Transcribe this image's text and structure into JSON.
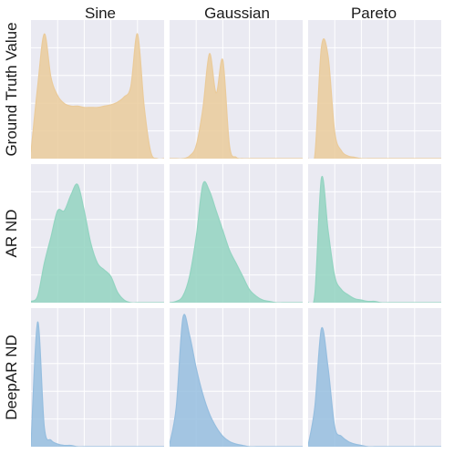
{
  "chart_data": {
    "type": "area",
    "layout": "3x3 small multiples",
    "grid": true,
    "axes_ticks_shown": false,
    "columns": [
      "Sine",
      "Gaussian",
      "Pareto"
    ],
    "rows": [
      {
        "label": "Ground Truth Value",
        "color": "#EACB9B"
      },
      {
        "label": "AR ND",
        "color": "#93D4C1"
      },
      {
        "label": "DeepAR ND",
        "color": "#96BEDF"
      }
    ],
    "x": [
      0,
      0.05,
      0.1,
      0.15,
      0.2,
      0.25,
      0.3,
      0.35,
      0.4,
      0.45,
      0.5,
      0.55,
      0.6,
      0.65,
      0.7,
      0.75,
      0.8,
      0.85,
      0.9,
      0.95,
      1
    ],
    "xlim": [
      0,
      1
    ],
    "ylim": [
      0,
      1
    ],
    "panels": [
      [
        {
          "values": [
            0.05,
            0.55,
            0.95,
            0.62,
            0.48,
            0.42,
            0.4,
            0.4,
            0.39,
            0.39,
            0.39,
            0.4,
            0.41,
            0.43,
            0.47,
            0.55,
            0.95,
            0.4,
            0.05,
            0,
            0
          ]
        },
        {
          "values": [
            0,
            0,
            0,
            0.02,
            0.1,
            0.38,
            0.8,
            0.5,
            0.75,
            0.1,
            0.01,
            0,
            0,
            0,
            0,
            0,
            0,
            0,
            0,
            0,
            0
          ]
        },
        {
          "values": [
            0,
            0.02,
            0.85,
            0.78,
            0.2,
            0.06,
            0.02,
            0.01,
            0,
            0,
            0,
            0,
            0,
            0,
            0,
            0,
            0,
            0,
            0,
            0,
            0
          ]
        }
      ],
      [
        {
          "values": [
            0.01,
            0.05,
            0.3,
            0.5,
            0.7,
            0.7,
            0.82,
            0.9,
            0.7,
            0.45,
            0.3,
            0.25,
            0.2,
            0.08,
            0.02,
            0,
            0,
            0,
            0,
            0,
            0
          ]
        },
        {
          "values": [
            0,
            0.01,
            0.05,
            0.2,
            0.5,
            0.9,
            0.85,
            0.7,
            0.55,
            0.4,
            0.3,
            0.2,
            0.1,
            0.05,
            0.02,
            0.01,
            0,
            0,
            0,
            0,
            0
          ]
        },
        {
          "values": [
            0,
            0.06,
            0.95,
            0.55,
            0.2,
            0.1,
            0.06,
            0.03,
            0.02,
            0.01,
            0.01,
            0,
            0,
            0,
            0,
            0,
            0,
            0,
            0,
            0,
            0
          ]
        }
      ],
      [
        {
          "values": [
            0.01,
            0.95,
            0.15,
            0.05,
            0.02,
            0.01,
            0.01,
            0,
            0,
            0,
            0,
            0,
            0,
            0,
            0,
            0,
            0,
            0,
            0,
            0,
            0
          ]
        },
        {
          "values": [
            0.02,
            0.3,
            0.98,
            0.85,
            0.6,
            0.4,
            0.25,
            0.15,
            0.08,
            0.04,
            0.02,
            0.01,
            0,
            0,
            0,
            0,
            0,
            0,
            0,
            0,
            0
          ]
        },
        {
          "values": [
            0.01,
            0.3,
            0.9,
            0.6,
            0.15,
            0.08,
            0.04,
            0.02,
            0.01,
            0,
            0,
            0,
            0,
            0,
            0,
            0,
            0,
            0,
            0,
            0,
            0
          ]
        }
      ]
    ]
  }
}
